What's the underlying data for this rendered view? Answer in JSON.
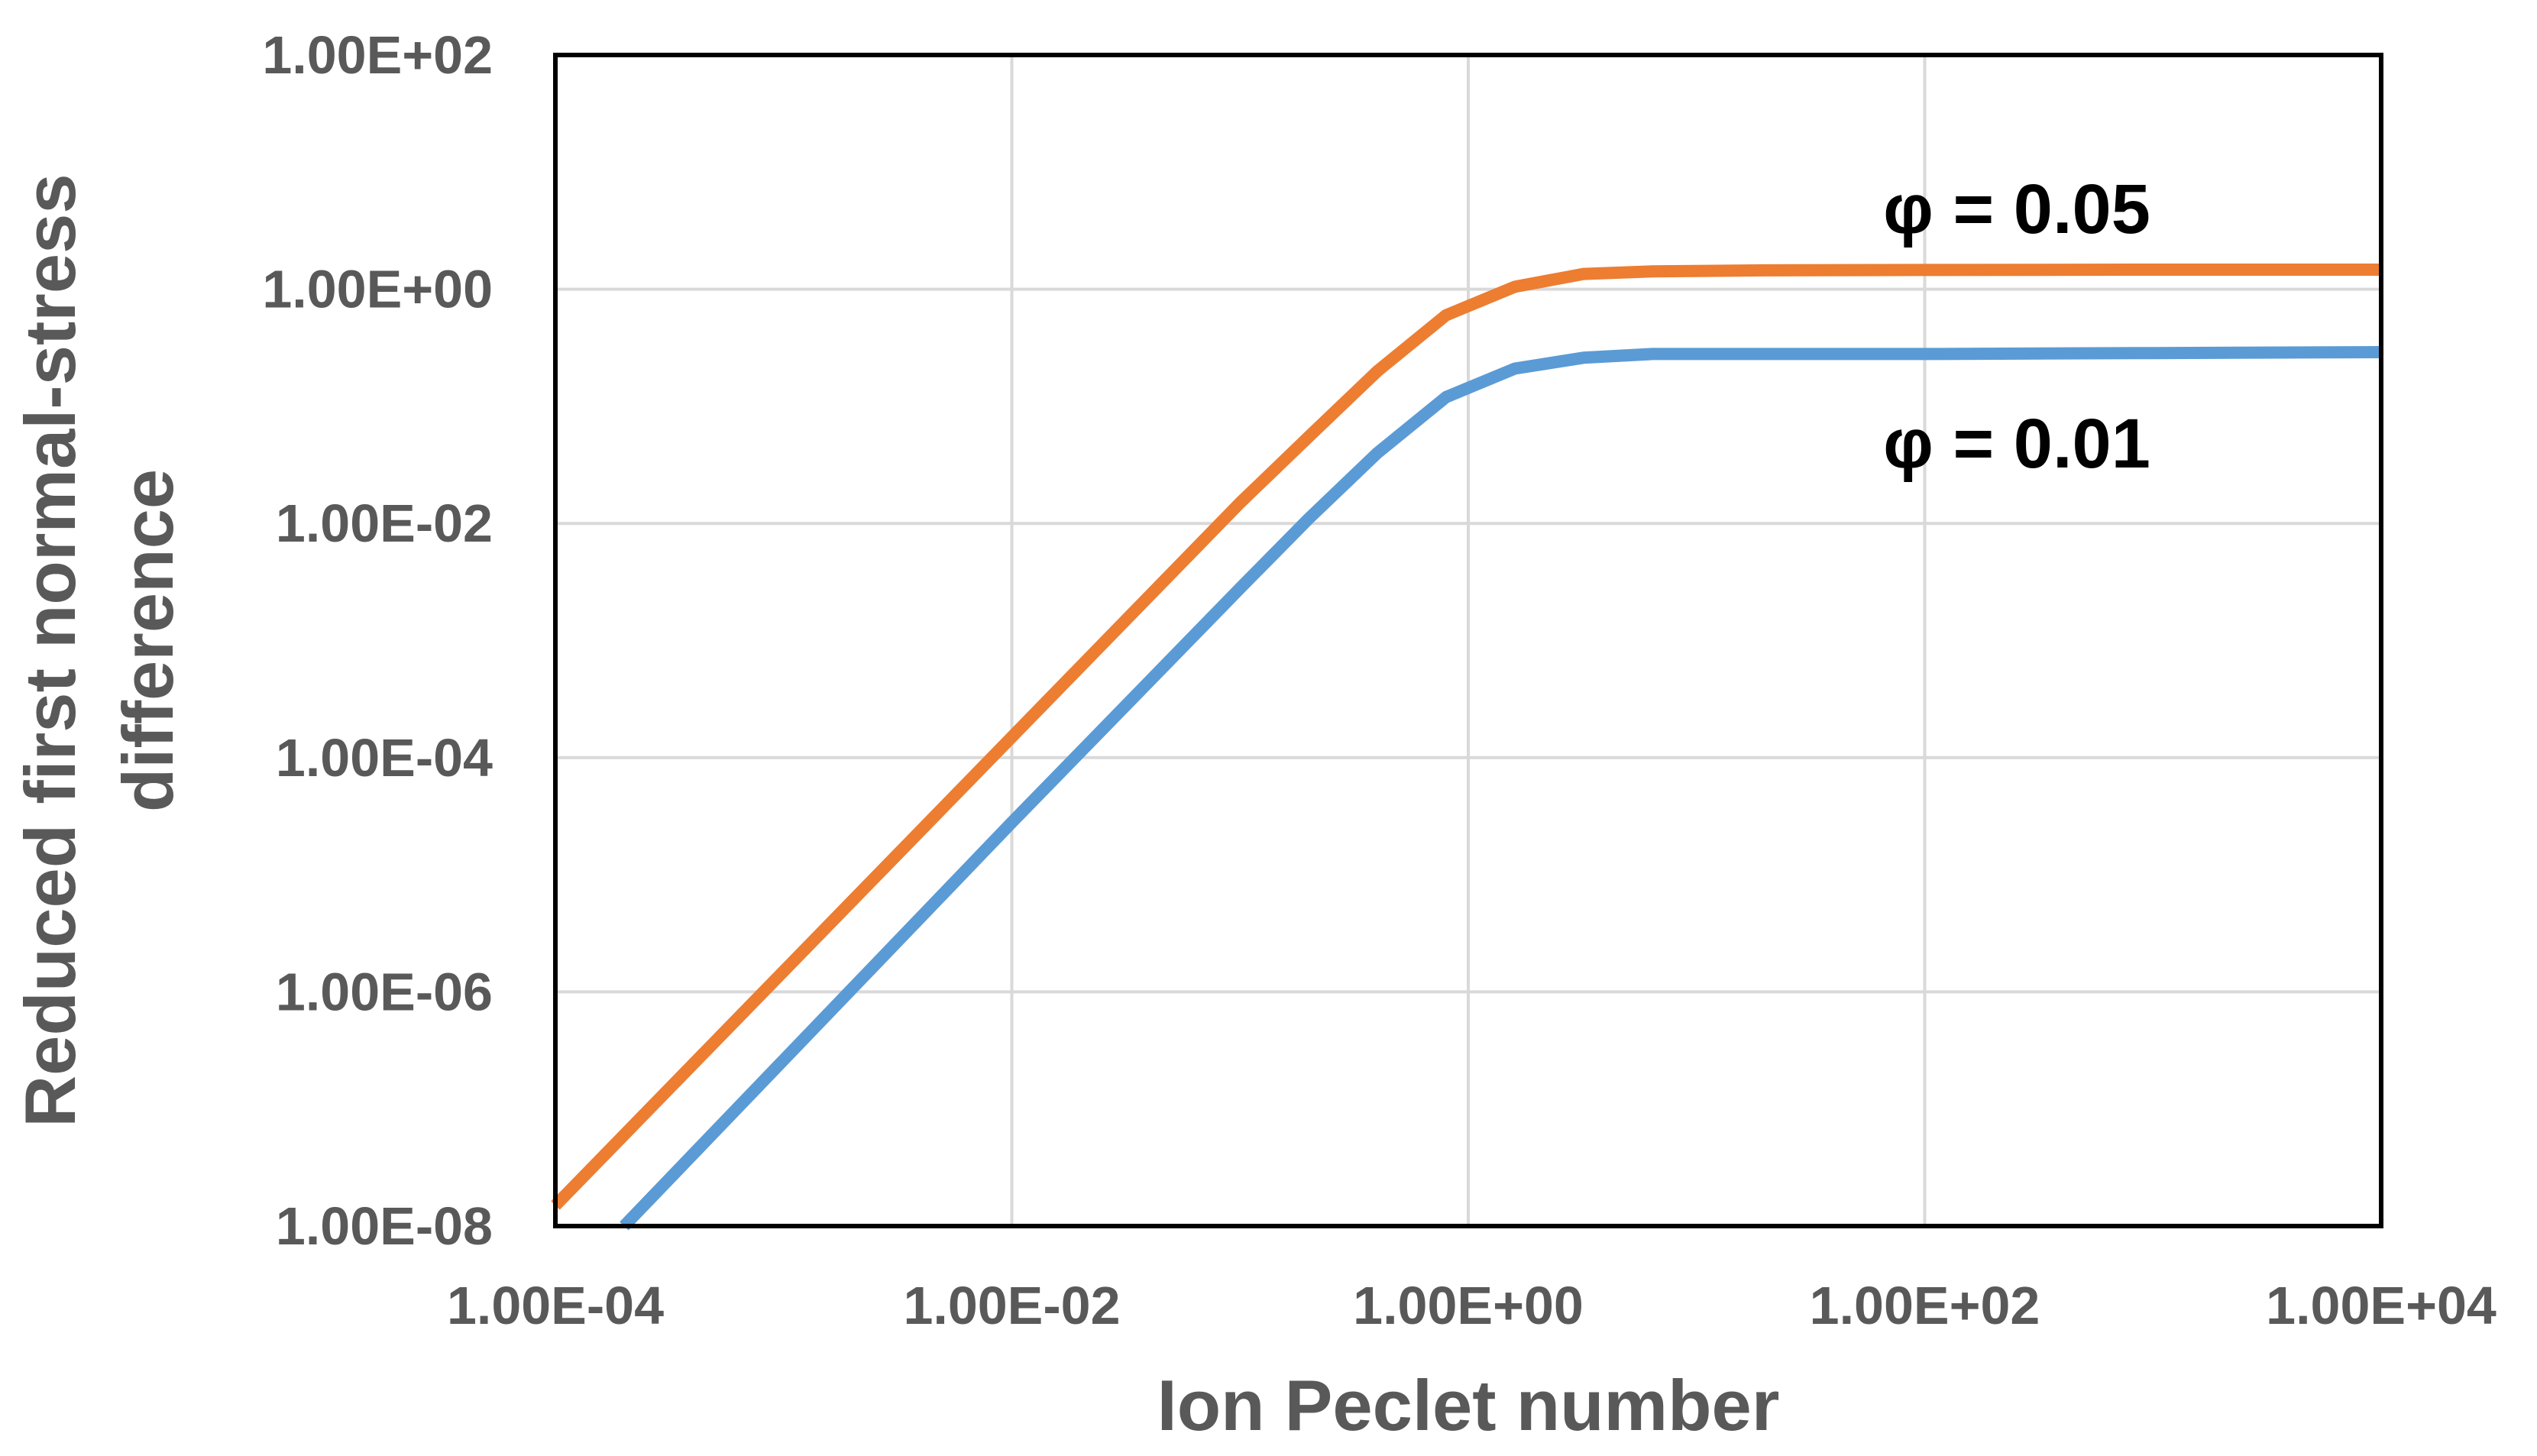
{
  "chart_data": {
    "type": "line",
    "xlabel": "Ion Peclet number",
    "ylabel_lines": [
      "Reduced first normal-stress",
      "difference"
    ],
    "x_scale": "log",
    "y_scale": "log",
    "xlim": [
      0.0001,
      10000
    ],
    "ylim": [
      1e-08,
      100
    ],
    "x_ticks": [
      0.0001,
      0.01,
      1,
      100,
      10000
    ],
    "x_tick_labels": [
      "1.00E-04",
      "1.00E-02",
      "1.00E+00",
      "1.00E+02",
      "1.00E+04"
    ],
    "y_ticks": [
      1e-08,
      1e-06,
      0.0001,
      0.01,
      1,
      100
    ],
    "y_tick_labels": [
      "1.00E-08",
      "1.00E-06",
      "1.00E-04",
      "1.00E-02",
      "1.00E+00",
      "1.00E+02"
    ],
    "grid": true,
    "legend": "none",
    "series": [
      {
        "name": "φ = 0.05",
        "color": "#ED7D31",
        "x": [
          0.0001,
          0.01,
          0.1,
          0.2,
          0.4,
          0.8,
          1.6,
          3.2,
          6.4,
          20,
          100,
          1000,
          10000
        ],
        "y": [
          1.5e-08,
          0.00015,
          0.015,
          0.055,
          0.2,
          0.6,
          1.05,
          1.35,
          1.42,
          1.45,
          1.46,
          1.47,
          1.47
        ]
      },
      {
        "name": "φ = 0.01",
        "color": "#5B9BD5",
        "x": [
          0.0002,
          0.01,
          0.1,
          0.2,
          0.4,
          0.8,
          1.6,
          3.2,
          6.4,
          20,
          100,
          1000,
          10000
        ],
        "y": [
          1e-08,
          2.8e-05,
          0.0028,
          0.011,
          0.04,
          0.12,
          0.21,
          0.26,
          0.28,
          0.28,
          0.28,
          0.285,
          0.29
        ]
      }
    ]
  }
}
